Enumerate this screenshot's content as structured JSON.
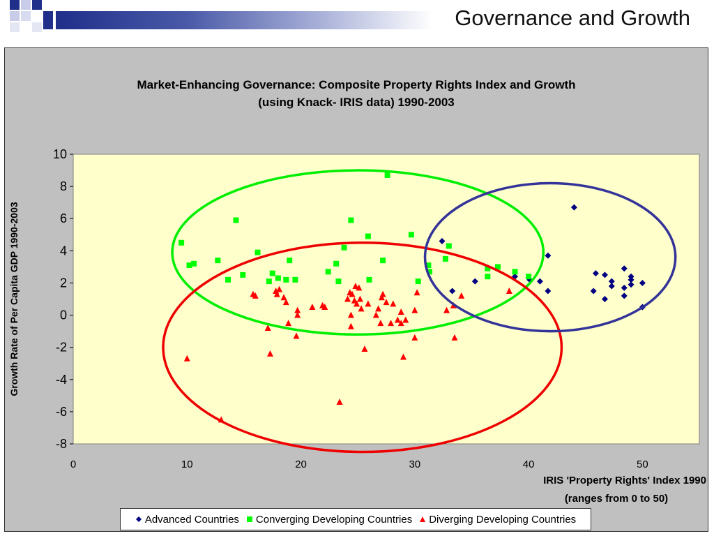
{
  "slide": {
    "title": "Governance and Growth"
  },
  "colors": {
    "plot_bg": "#ffffcc",
    "frame_bg": "#c0c0c0",
    "advanced": "#000080",
    "converging": "#00ff00",
    "diverging": "#ff0000",
    "ellipse_advanced": "#333399",
    "ellipse_converging": "#00ee00",
    "ellipse_diverging": "#ee0000"
  },
  "chart_data": {
    "type": "scatter",
    "title": "Market-Enhancing Governance: Composite Property Rights Index and Growth",
    "subtitle": "(using Knack- IRIS data) 1990-2003",
    "xlabel_line1": "IRIS 'Property Rights' Index 1990",
    "xlabel_line2": "(ranges from 0 to 50)",
    "ylabel": "Growth Rate of Per Capita GDP 1990-2003",
    "xlim": [
      0,
      55
    ],
    "ylim": [
      -8,
      10
    ],
    "xticks": [
      "0",
      "10",
      "20",
      "30",
      "40",
      "50"
    ],
    "yticks": [
      "10",
      "8",
      "6",
      "4",
      "2",
      "0",
      "-2",
      "-4",
      "-6",
      "-8"
    ],
    "grid": false,
    "legend_position": "bottom",
    "series": [
      {
        "name": "Advanced Countries",
        "marker": "diamond",
        "points": [
          [
            32.4,
            4.6
          ],
          [
            33.3,
            1.5
          ],
          [
            35.3,
            2.1
          ],
          [
            38.8,
            2.4
          ],
          [
            40.1,
            2.2
          ],
          [
            41.0,
            2.1
          ],
          [
            41.7,
            3.7
          ],
          [
            41.7,
            1.5
          ],
          [
            44.0,
            6.7
          ],
          [
            45.7,
            1.5
          ],
          [
            45.9,
            2.6
          ],
          [
            46.7,
            2.5
          ],
          [
            46.7,
            1.0
          ],
          [
            47.3,
            2.1
          ],
          [
            47.3,
            1.8
          ],
          [
            48.4,
            2.9
          ],
          [
            48.4,
            1.7
          ],
          [
            48.4,
            1.2
          ],
          [
            49.0,
            2.4
          ],
          [
            49.0,
            2.2
          ],
          [
            49.0,
            1.9
          ],
          [
            50.0,
            2.0
          ],
          [
            50.0,
            0.5
          ]
        ]
      },
      {
        "name": "Converging Developing Countries",
        "marker": "square",
        "points": [
          [
            9.5,
            4.5
          ],
          [
            10.2,
            3.1
          ],
          [
            10.6,
            3.2
          ],
          [
            12.7,
            3.4
          ],
          [
            13.6,
            2.2
          ],
          [
            14.3,
            5.9
          ],
          [
            14.9,
            2.5
          ],
          [
            16.2,
            3.9
          ],
          [
            17.2,
            2.1
          ],
          [
            17.5,
            2.6
          ],
          [
            18.0,
            2.3
          ],
          [
            18.7,
            2.2
          ],
          [
            19.0,
            3.4
          ],
          [
            19.5,
            2.2
          ],
          [
            22.4,
            2.7
          ],
          [
            23.1,
            3.2
          ],
          [
            23.3,
            2.1
          ],
          [
            23.8,
            4.2
          ],
          [
            24.4,
            5.9
          ],
          [
            25.9,
            4.9
          ],
          [
            26.0,
            2.2
          ],
          [
            27.2,
            3.4
          ],
          [
            27.6,
            8.7
          ],
          [
            29.7,
            5.0
          ],
          [
            30.3,
            2.1
          ],
          [
            31.2,
            3.1
          ],
          [
            31.3,
            2.7
          ],
          [
            32.7,
            3.5
          ],
          [
            33.0,
            4.3
          ],
          [
            36.4,
            2.9
          ],
          [
            36.4,
            2.4
          ],
          [
            37.3,
            3.0
          ],
          [
            38.8,
            2.7
          ],
          [
            40.0,
            2.4
          ]
        ]
      },
      {
        "name": "Diverging Developing Countries",
        "marker": "triangle",
        "points": [
          [
            10.0,
            -2.7
          ],
          [
            13.0,
            -6.5
          ],
          [
            15.8,
            1.3
          ],
          [
            16.0,
            1.2
          ],
          [
            17.1,
            -0.8
          ],
          [
            17.3,
            -2.4
          ],
          [
            17.8,
            1.5
          ],
          [
            17.9,
            1.3
          ],
          [
            18.1,
            1.6
          ],
          [
            18.5,
            1.1
          ],
          [
            18.7,
            0.8
          ],
          [
            18.9,
            -0.5
          ],
          [
            19.6,
            -1.3
          ],
          [
            19.7,
            0.3
          ],
          [
            19.7,
            0.0
          ],
          [
            21.0,
            0.5
          ],
          [
            21.9,
            0.6
          ],
          [
            22.1,
            0.5
          ],
          [
            23.4,
            -5.4
          ],
          [
            24.1,
            1.0
          ],
          [
            24.3,
            1.4
          ],
          [
            24.4,
            0.0
          ],
          [
            24.4,
            -0.7
          ],
          [
            24.5,
            1.3
          ],
          [
            24.7,
            0.9
          ],
          [
            24.8,
            1.8
          ],
          [
            24.9,
            0.7
          ],
          [
            25.1,
            1.7
          ],
          [
            25.2,
            1.0
          ],
          [
            25.3,
            0.4
          ],
          [
            25.6,
            -2.1
          ],
          [
            25.9,
            0.7
          ],
          [
            26.6,
            0.0
          ],
          [
            26.8,
            0.4
          ],
          [
            27.0,
            -0.5
          ],
          [
            27.1,
            1.1
          ],
          [
            27.2,
            1.3
          ],
          [
            27.5,
            0.8
          ],
          [
            27.9,
            -0.5
          ],
          [
            28.1,
            0.7
          ],
          [
            28.5,
            -0.3
          ],
          [
            28.8,
            0.2
          ],
          [
            28.8,
            -0.5
          ],
          [
            29.0,
            -2.6
          ],
          [
            29.2,
            -0.3
          ],
          [
            30.0,
            0.3
          ],
          [
            30.0,
            -1.4
          ],
          [
            30.2,
            1.4
          ],
          [
            32.8,
            0.3
          ],
          [
            33.4,
            0.6
          ],
          [
            33.5,
            -1.4
          ],
          [
            34.1,
            1.2
          ],
          [
            38.3,
            1.5
          ]
        ]
      }
    ],
    "ellipses": [
      {
        "group": "Converging Developing Countries",
        "cx": 25.0,
        "cy": 3.9,
        "rx": 16.3,
        "ry": 5.1
      },
      {
        "group": "Diverging Developing Countries",
        "cx": 25.4,
        "cy": -2.0,
        "rx": 17.5,
        "ry": 6.5
      },
      {
        "group": "Advanced Countries",
        "cx": 41.9,
        "cy": 3.6,
        "rx": 11.0,
        "ry": 4.6
      }
    ]
  }
}
